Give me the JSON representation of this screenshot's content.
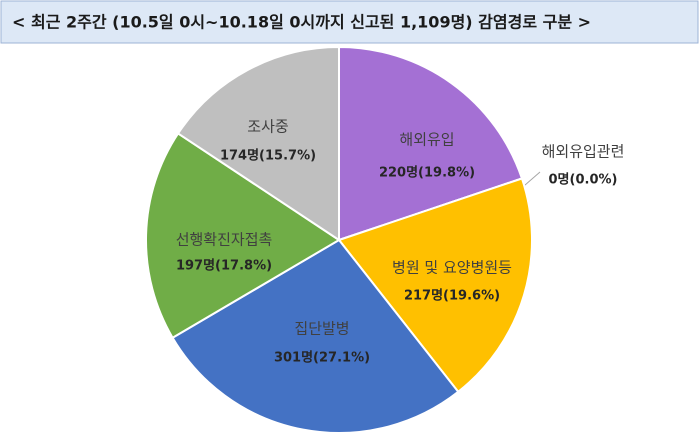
{
  "chart_data": {
    "type": "pie",
    "title": "< 최근 2주간 (10.5일 0시~10.18일 0시까지 신고된 1,109명)  감염경로 구분 >",
    "categories": [
      "해외유입",
      "해외유입관련",
      "병원 및 요양병원등",
      "집단발병",
      "선행확진자접촉",
      "조사중"
    ],
    "values": [
      220,
      0,
      217,
      301,
      197,
      174
    ],
    "value_labels": [
      "220명(19.8%)",
      "0명(0.0%)",
      "217명(19.6%)",
      "301명(27.1%)",
      "197명(17.8%)",
      "174명(15.7%)"
    ],
    "colors": [
      "#a470d4",
      "#8fb7e8",
      "#ffc000",
      "#4472c4",
      "#70ad47",
      "#bfbfbf"
    ]
  }
}
